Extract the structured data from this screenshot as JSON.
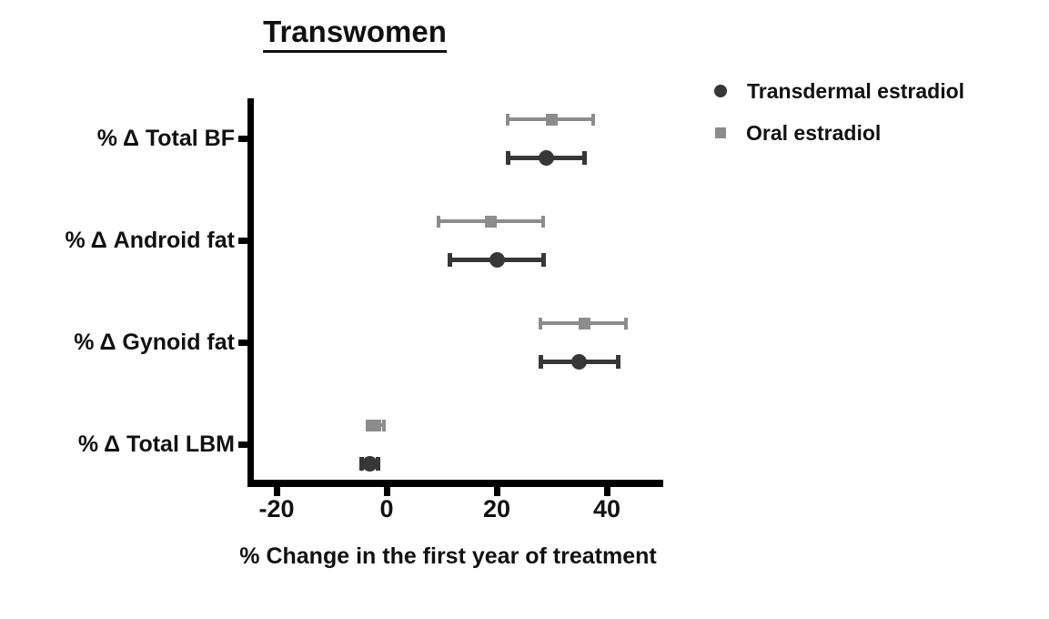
{
  "chart_data": {
    "type": "scatter",
    "title": "Transwomen",
    "xlabel": "% Change in the first year of treatment",
    "categories": [
      "% Δ Total BF",
      "% Δ Android fat",
      "% Δ Gynoid fat",
      "% Δ Total LBM"
    ],
    "x_ticks": [
      -20,
      0,
      20,
      40
    ],
    "x_tick_labels": [
      "-20",
      "0",
      "20",
      "40"
    ],
    "xlim": [
      -25,
      50
    ],
    "grid": false,
    "legend_position": "top-right",
    "series": [
      {
        "name": "Transdermal estradiol",
        "marker": "circle",
        "color": "#373737",
        "points": [
          {
            "category": "% Δ Total BF",
            "mean": 29,
            "lo": 22,
            "hi": 36
          },
          {
            "category": "% Δ Android fat",
            "mean": 20,
            "lo": 11.5,
            "hi": 28.5
          },
          {
            "category": "% Δ Gynoid fat",
            "mean": 35,
            "lo": 28,
            "hi": 42
          },
          {
            "category": "% Δ Total LBM",
            "mean": -3,
            "lo": -4.5,
            "hi": -1.5
          }
        ]
      },
      {
        "name": "Oral estradiol",
        "marker": "square",
        "color": "#8c8c8c",
        "points": [
          {
            "category": "% Δ Total BF",
            "mean": 30,
            "lo": 22,
            "hi": 37.5
          },
          {
            "category": "% Δ Android fat",
            "mean": 19,
            "lo": 9.5,
            "hi": 28.5
          },
          {
            "category": "% Δ Gynoid fat",
            "mean": 36,
            "lo": 28,
            "hi": 43.5
          },
          {
            "category": "% Δ Total LBM",
            "mean": -2,
            "lo": -3.5,
            "hi": -0.5
          }
        ]
      }
    ],
    "colors": {
      "axis": "#000000",
      "text": "#111111",
      "background": "#ffffff"
    }
  }
}
